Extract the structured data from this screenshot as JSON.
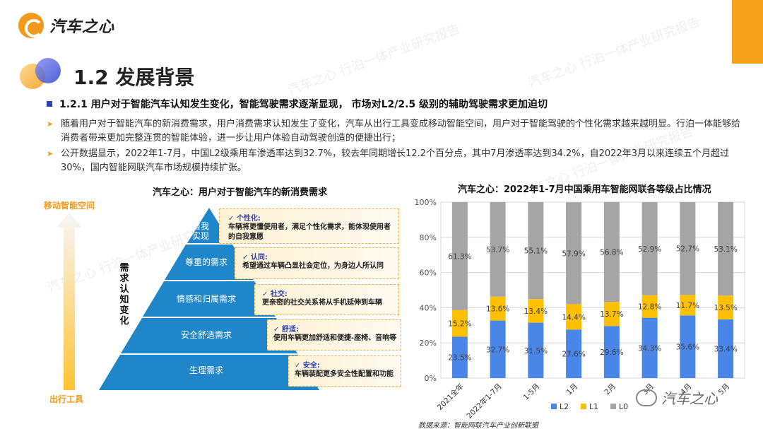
{
  "header": {
    "brand": "汽车之心"
  },
  "watermark": "汽车之心 行泊一体产业研究报告",
  "section": {
    "title": "1.2 发展背景"
  },
  "subheading": "1.2.1 用户对于智能汽车认知发生变化，智能驾驶需求逐渐显现， 市场对L2/2.5 级别的辅助驾驶需求更加迫切",
  "bullets": [
    "随着用户对于智能汽车的新消费需求，用户消费需求认知发生了变化，汽车从出行工具变成移动智能空间，用户对于智能驾驶的个性化需求越来越明显。行泊一体能够给消费者带来更加完整连贯的智能体验，进一步让用户体验自动驾驶创造的便捷出行；",
    "公开数据显示，2022年1-7月，中国L2级乘用车渗透率达到32.7%，较去年同期增长12.2个百分点，其中7月渗透率达到34.2%，自2022年3月以来连续五个月超过30%，国内智能网联汽车市场规模持续扩张。"
  ],
  "pyramid_figure": {
    "title": "汽车之心：用户对于智能汽车的新消费需求",
    "axis_top": "移动智能空间",
    "axis_bottom": "出行工具",
    "axis_middle": "需求认知变化",
    "levels": [
      {
        "name": "自我实现",
        "key": "✓ 个性化:",
        "desc": "车辆将更懂使用者，满足个性化需求，能体现使用者的自我意愿"
      },
      {
        "name": "尊重的需求",
        "key": "✓ 认同:",
        "desc": "希望通过车辆凸显社会定位，为身边人所认同"
      },
      {
        "name": "情感和归属需求",
        "key": "✓ 社交:",
        "desc": "更亲密的社交关系将从手机延伸到车辆"
      },
      {
        "name": "安全舒适需求",
        "key": "✓ 舒适:",
        "desc": "使用车辆更加舒适和便捷-座椅、音响等"
      },
      {
        "name": "生理需求",
        "key": "✓ 安全:",
        "desc": "车辆装配更多安全性配置和功能"
      }
    ]
  },
  "chart_data": {
    "type": "bar",
    "stacked": true,
    "percent": true,
    "title": "汽车之心：2022年1-7月中国乘用车智能网联各等级占比情况",
    "categories": [
      "2021全年",
      "2022年1-7月",
      "1-5月",
      "1月",
      "2月",
      "3月",
      "4月",
      "5月"
    ],
    "series": [
      {
        "name": "L2",
        "color": "#4a86e8",
        "values": [
          23.5,
          32.7,
          31.5,
          27.6,
          29.6,
          34.3,
          35.6,
          33.4
        ]
      },
      {
        "name": "L1",
        "color": "#ffc000",
        "values": [
          15.2,
          13.6,
          13.4,
          14.4,
          13.7,
          12.8,
          11.7,
          13.5
        ]
      },
      {
        "name": "L0",
        "color": "#a5a5a5",
        "values": [
          61.3,
          53.7,
          55.1,
          57.9,
          56.8,
          52.9,
          52.7,
          53.1
        ]
      }
    ],
    "ylim": [
      0,
      100
    ],
    "yticks": [
      "0%",
      "20%",
      "40%",
      "60%",
      "80%",
      "100%"
    ],
    "grid": true,
    "legend": "bottom"
  },
  "source": "数据来源：智能网联汽车产业创新联盟",
  "wechat_badge": "汽车之心"
}
